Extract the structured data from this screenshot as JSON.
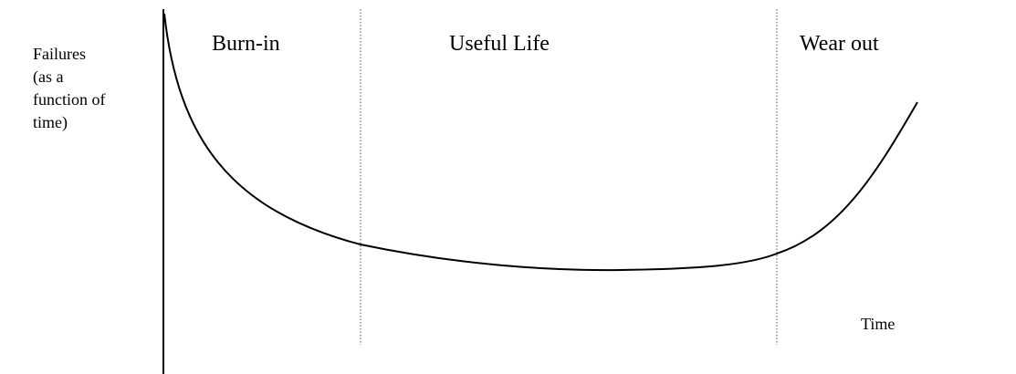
{
  "y_axis_label": {
    "lines": [
      "Failures",
      "(as a",
      "function of",
      "time)"
    ]
  },
  "regions": [
    {
      "label": "Burn-in"
    },
    {
      "label": "Useful Life"
    },
    {
      "label": "Wear out"
    }
  ],
  "x_axis_label": "Time"
}
